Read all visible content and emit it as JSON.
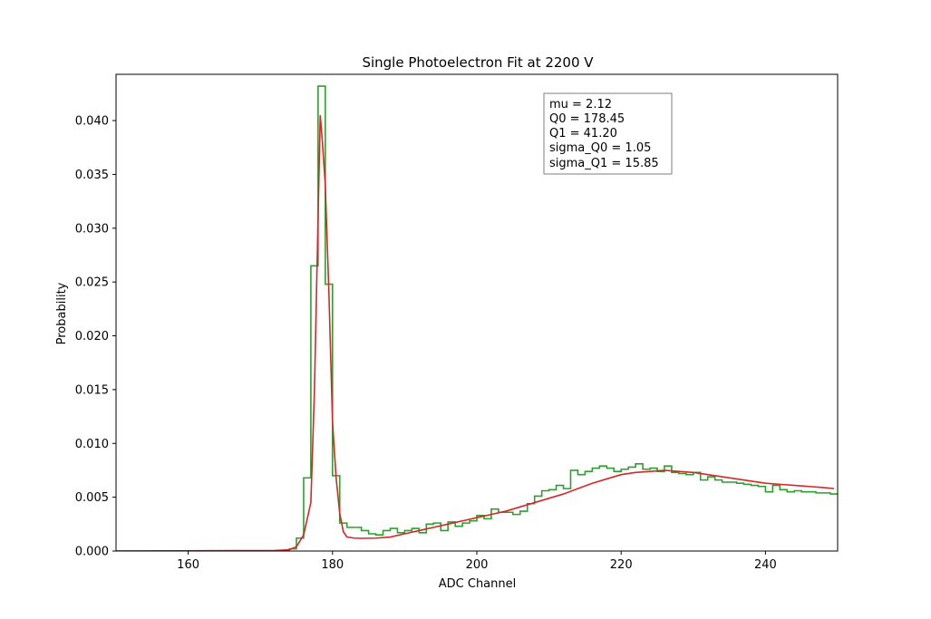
{
  "chart_data": {
    "type": "line",
    "title": "Single Photoelectron Fit at 2200 V",
    "xlabel": "ADC Channel",
    "ylabel": "Probability",
    "xlim": [
      150,
      250
    ],
    "ylim": [
      0,
      0.0443
    ],
    "xticks": [
      160,
      180,
      200,
      220,
      240
    ],
    "xtick_labels": [
      "160",
      "180",
      "200",
      "220",
      "240"
    ],
    "yticks": [
      0,
      0.005,
      0.01,
      0.015,
      0.02,
      0.025,
      0.03,
      0.035,
      0.04
    ],
    "ytick_labels": [
      "0.000",
      "0.005",
      "0.010",
      "0.015",
      "0.020",
      "0.025",
      "0.030",
      "0.035",
      "0.040"
    ],
    "grid": false,
    "annotation": {
      "lines": [
        "mu = 2.12",
        "Q0 = 178.45",
        "Q1 = 41.20",
        "sigma_Q0 = 1.05",
        "sigma_Q1 = 15.85"
      ]
    },
    "series": [
      {
        "kind": "histogram-step",
        "color": "#2ca02c",
        "bin_width": 1,
        "x_start": 150,
        "values": [
          0,
          0,
          0,
          0,
          0,
          0,
          0,
          0,
          0,
          0,
          0,
          0,
          0,
          0,
          0,
          0,
          0,
          0,
          0,
          0,
          0,
          0,
          0,
          0,
          0.0002,
          0.0012,
          0.0068,
          0.0265,
          0.0432,
          0.0248,
          0.007,
          0.0026,
          0.0022,
          0.0022,
          0.0019,
          0.0016,
          0.0015,
          0.0019,
          0.0021,
          0.0017,
          0.0019,
          0.0021,
          0.0017,
          0.0025,
          0.0026,
          0.0019,
          0.0027,
          0.0023,
          0.0026,
          0.0028,
          0.0033,
          0.003,
          0.0039,
          0.0036,
          0.0036,
          0.0034,
          0.0037,
          0.0044,
          0.0051,
          0.0056,
          0.0057,
          0.0061,
          0.0058,
          0.0075,
          0.0071,
          0.0074,
          0.0077,
          0.0079,
          0.0077,
          0.0074,
          0.0076,
          0.0078,
          0.0081,
          0.0076,
          0.0077,
          0.0074,
          0.0079,
          0.0073,
          0.0072,
          0.0071,
          0.0073,
          0.0066,
          0.0069,
          0.0066,
          0.0064,
          0.0064,
          0.0063,
          0.0062,
          0.0061,
          0.006,
          0.0055,
          0.0061,
          0.0057,
          0.0055,
          0.0056,
          0.0055,
          0.0055,
          0.0054,
          0.0054,
          0.0053
        ]
      },
      {
        "kind": "fit-curve",
        "color": "#d62728",
        "x": [
          150,
          172,
          173,
          174,
          175,
          176,
          177,
          177.5,
          178,
          178.3,
          178.6,
          179,
          179.5,
          180,
          180.5,
          181,
          181.5,
          182,
          183,
          184,
          186,
          188,
          190,
          192,
          194,
          196,
          198,
          200,
          202,
          204,
          206,
          208,
          210,
          212,
          214,
          216,
          218,
          220,
          222,
          224,
          226,
          228,
          230,
          232,
          234,
          236,
          238,
          240,
          242,
          244,
          246,
          248,
          249.5
        ],
        "y": [
          0,
          5e-05,
          8e-05,
          0.00012,
          0.0004,
          0.0015,
          0.0045,
          0.015,
          0.031,
          0.0405,
          0.038,
          0.034,
          0.024,
          0.012,
          0.0068,
          0.0035,
          0.0018,
          0.0013,
          0.0012,
          0.00118,
          0.0012,
          0.0013,
          0.0016,
          0.0019,
          0.0022,
          0.0025,
          0.0028,
          0.0031,
          0.0034,
          0.0037,
          0.0041,
          0.0045,
          0.0049,
          0.0053,
          0.0058,
          0.0063,
          0.0067,
          0.0071,
          0.0073,
          0.0074,
          0.0075,
          0.0074,
          0.0073,
          0.0071,
          0.0069,
          0.0067,
          0.0065,
          0.0063,
          0.0062,
          0.0061,
          0.006,
          0.0059,
          0.0058
        ]
      }
    ]
  }
}
